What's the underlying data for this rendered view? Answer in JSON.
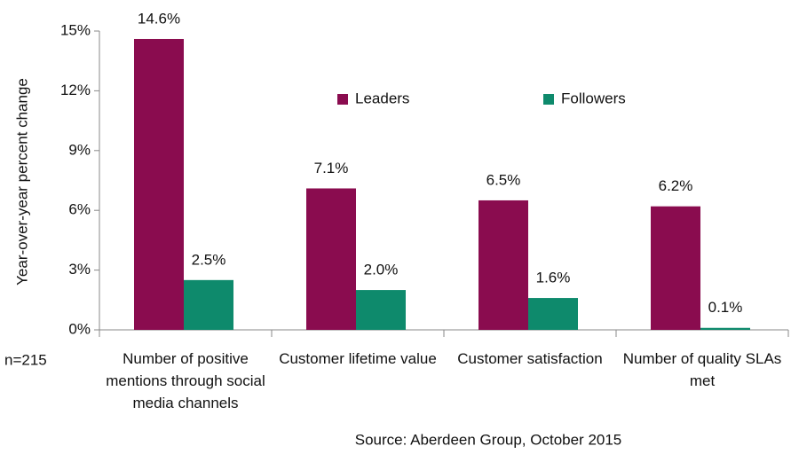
{
  "chart_data": {
    "type": "bar",
    "y_label": "Year-over-year percent change",
    "categories": [
      "Number of positive mentions through social media channels",
      "Customer lifetime value",
      "Customer satisfaction",
      "Number of quality SLAs met"
    ],
    "series": [
      {
        "name": "Leaders",
        "color": "#8a0c4f",
        "values": [
          14.6,
          7.1,
          6.5,
          6.2
        ],
        "value_labels": [
          "14.6%",
          "7.1%",
          "6.5%",
          "6.2%"
        ]
      },
      {
        "name": "Followers",
        "color": "#0e8a6c",
        "values": [
          2.5,
          2.0,
          1.6,
          0.1
        ],
        "value_labels": [
          "2.5%",
          "2.0%",
          "1.6%",
          "0.1%"
        ]
      }
    ],
    "ylim": [
      0,
      15
    ],
    "yticks": [
      {
        "value": 0,
        "label": "0%"
      },
      {
        "value": 3,
        "label": "3%"
      },
      {
        "value": 6,
        "label": "6%"
      },
      {
        "value": 9,
        "label": "9%"
      },
      {
        "value": 12,
        "label": "12%"
      },
      {
        "value": 15,
        "label": "15%"
      }
    ],
    "annotations": [
      "n=215",
      "Source: Aberdeen Group, October 2015"
    ],
    "legend": "top-right",
    "grid": false
  }
}
